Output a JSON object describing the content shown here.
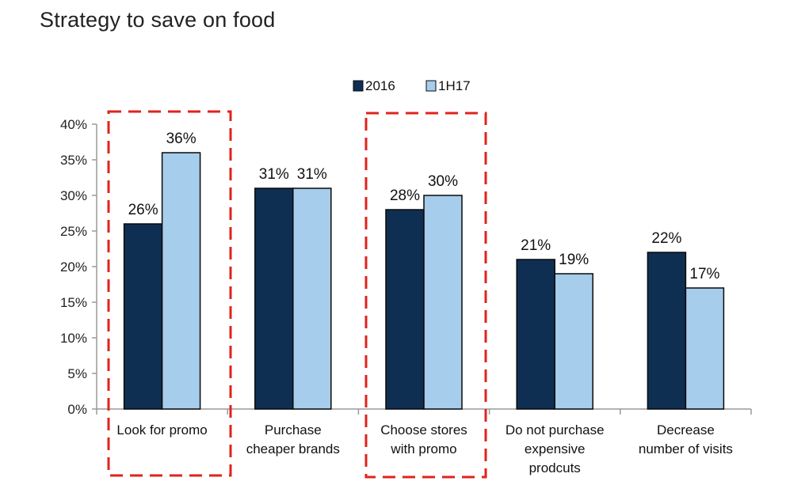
{
  "title": "Strategy to save on food",
  "chart_data": {
    "type": "bar",
    "title": "Strategy to save on food",
    "xlabel": "",
    "ylabel": "",
    "ylim": [
      0,
      40
    ],
    "yticks": [
      0,
      5,
      10,
      15,
      20,
      25,
      30,
      35,
      40
    ],
    "ytick_format": "{v}%",
    "grid": false,
    "legend_position": "top",
    "categories": [
      [
        "Look for promo"
      ],
      [
        "Purchase",
        "cheaper brands"
      ],
      [
        "Choose stores",
        "with promo"
      ],
      [
        "Do not purchase",
        "expensive",
        "prodcuts"
      ],
      [
        "Decrease",
        "number of visits"
      ]
    ],
    "series": [
      {
        "name": "2016",
        "color": "#0f2f52",
        "values": [
          26,
          31,
          28,
          21,
          22
        ],
        "labels": [
          "26%",
          "31%",
          "28%",
          "21%",
          "22%"
        ]
      },
      {
        "name": "1H17",
        "color": "#a6cdeb",
        "values": [
          36,
          31,
          30,
          19,
          17
        ],
        "labels": [
          "36%",
          "31%",
          "30%",
          "19%",
          "17%"
        ]
      }
    ],
    "highlighted_categories": [
      0,
      2
    ],
    "highlight_color": "#e0231c"
  }
}
